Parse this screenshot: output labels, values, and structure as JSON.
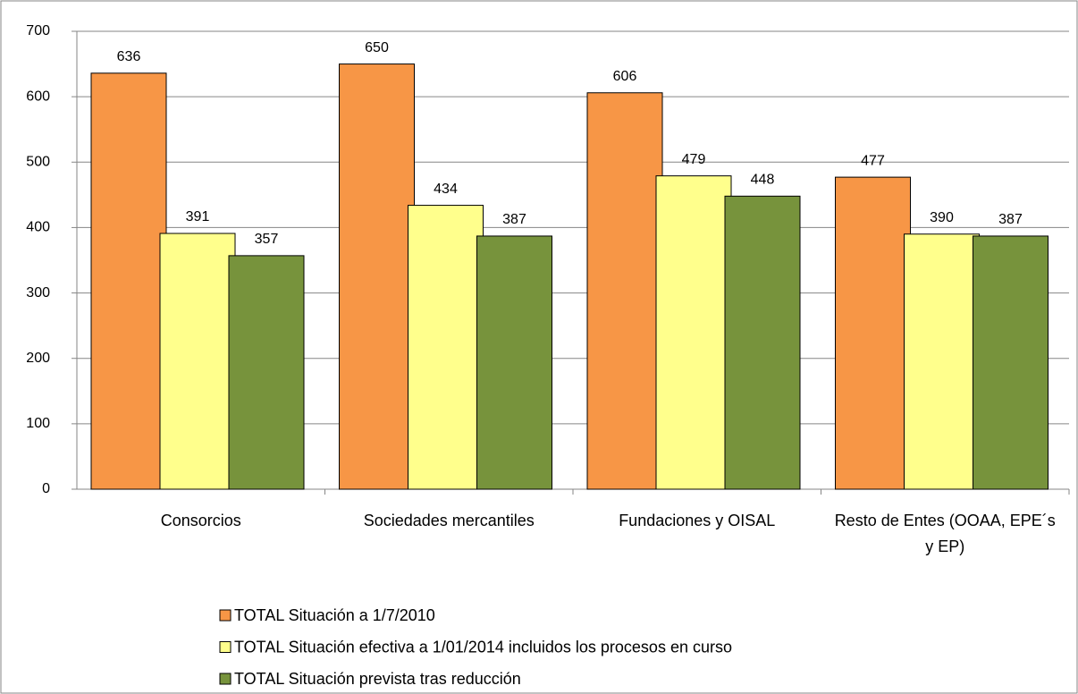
{
  "chart_data": {
    "type": "bar",
    "categories": [
      "Consorcios",
      "Sociedades mercantiles",
      "Fundaciones y OISAL",
      "Resto de Entes (OOAA, EPE´s y EP)"
    ],
    "series": [
      {
        "name": "TOTAL Situación a 1/7/2010",
        "color": "#f79646",
        "values": [
          636,
          650,
          606,
          477
        ]
      },
      {
        "name": "TOTAL Situación efectiva a 1/01/2014 incluidos los procesos en curso",
        "color": "#ffff8c",
        "values": [
          391,
          434,
          479,
          390
        ]
      },
      {
        "name": "TOTAL Situación prevista tras reducción",
        "color": "#77933c",
        "values": [
          357,
          387,
          448,
          387
        ]
      }
    ],
    "ylim": [
      0,
      700
    ],
    "yticks": [
      0,
      100,
      200,
      300,
      400,
      500,
      600,
      700
    ],
    "grid": true
  }
}
